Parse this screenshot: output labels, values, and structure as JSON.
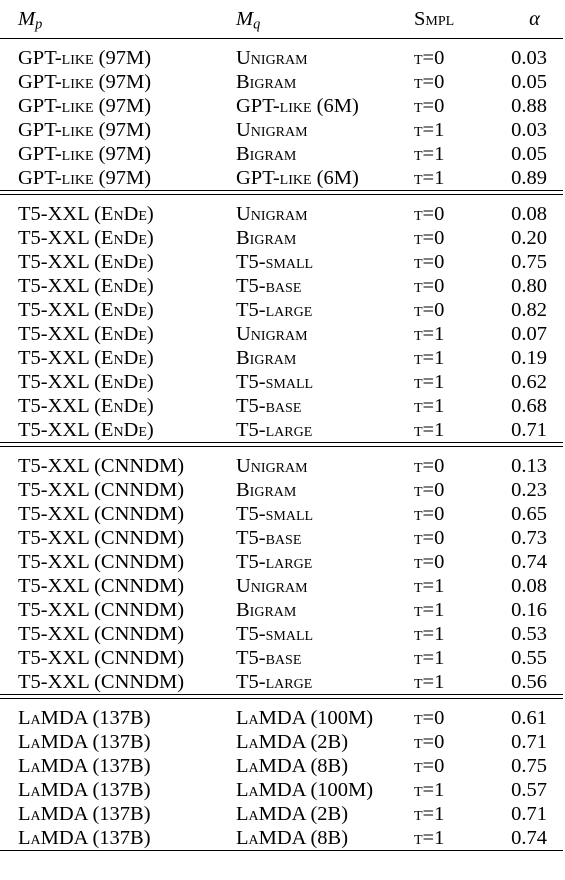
{
  "header": {
    "mp_base": "M",
    "mp_sub": "p",
    "mq_base": "M",
    "mq_sub": "q",
    "smpl": "Smpl",
    "alpha": "α"
  },
  "groups": [
    {
      "rows": [
        {
          "mp": "GPT-like (97M)",
          "mq": "Unigram",
          "smpl": "t=0",
          "alpha": "0.03"
        },
        {
          "mp": "GPT-like (97M)",
          "mq": "Bigram",
          "smpl": "t=0",
          "alpha": "0.05"
        },
        {
          "mp": "GPT-like (97M)",
          "mq": "GPT-like (6M)",
          "smpl": "t=0",
          "alpha": "0.88"
        },
        {
          "mp": "GPT-like (97M)",
          "mq": "Unigram",
          "smpl": "t=1",
          "alpha": "0.03"
        },
        {
          "mp": "GPT-like (97M)",
          "mq": "Bigram",
          "smpl": "t=1",
          "alpha": "0.05"
        },
        {
          "mp": "GPT-like (97M)",
          "mq": "GPT-like (6M)",
          "smpl": "t=1",
          "alpha": "0.89"
        }
      ]
    },
    {
      "rows": [
        {
          "mp": "T5-XXL (EnDe)",
          "mq": "Unigram",
          "smpl": "t=0",
          "alpha": "0.08"
        },
        {
          "mp": "T5-XXL (EnDe)",
          "mq": "Bigram",
          "smpl": "t=0",
          "alpha": "0.20"
        },
        {
          "mp": "T5-XXL (EnDe)",
          "mq": "T5-small",
          "smpl": "t=0",
          "alpha": "0.75"
        },
        {
          "mp": "T5-XXL (EnDe)",
          "mq": "T5-base",
          "smpl": "t=0",
          "alpha": "0.80"
        },
        {
          "mp": "T5-XXL (EnDe)",
          "mq": "T5-large",
          "smpl": "t=0",
          "alpha": "0.82"
        },
        {
          "mp": "T5-XXL (EnDe)",
          "mq": "Unigram",
          "smpl": "t=1",
          "alpha": "0.07"
        },
        {
          "mp": "T5-XXL (EnDe)",
          "mq": "Bigram",
          "smpl": "t=1",
          "alpha": "0.19"
        },
        {
          "mp": "T5-XXL (EnDe)",
          "mq": "T5-small",
          "smpl": "t=1",
          "alpha": "0.62"
        },
        {
          "mp": "T5-XXL (EnDe)",
          "mq": "T5-base",
          "smpl": "t=1",
          "alpha": "0.68"
        },
        {
          "mp": "T5-XXL (EnDe)",
          "mq": "T5-large",
          "smpl": "t=1",
          "alpha": "0.71"
        }
      ]
    },
    {
      "rows": [
        {
          "mp": "T5-XXL (CNNDM)",
          "mq": "Unigram",
          "smpl": "t=0",
          "alpha": "0.13"
        },
        {
          "mp": "T5-XXL (CNNDM)",
          "mq": "Bigram",
          "smpl": "t=0",
          "alpha": "0.23"
        },
        {
          "mp": "T5-XXL (CNNDM)",
          "mq": "T5-small",
          "smpl": "t=0",
          "alpha": "0.65"
        },
        {
          "mp": "T5-XXL (CNNDM)",
          "mq": "T5-base",
          "smpl": "t=0",
          "alpha": "0.73"
        },
        {
          "mp": "T5-XXL (CNNDM)",
          "mq": "T5-large",
          "smpl": "t=0",
          "alpha": "0.74"
        },
        {
          "mp": "T5-XXL (CNNDM)",
          "mq": "Unigram",
          "smpl": "t=1",
          "alpha": "0.08"
        },
        {
          "mp": "T5-XXL (CNNDM)",
          "mq": "Bigram",
          "smpl": "t=1",
          "alpha": "0.16"
        },
        {
          "mp": "T5-XXL (CNNDM)",
          "mq": "T5-small",
          "smpl": "t=1",
          "alpha": "0.53"
        },
        {
          "mp": "T5-XXL (CNNDM)",
          "mq": "T5-base",
          "smpl": "t=1",
          "alpha": "0.55"
        },
        {
          "mp": "T5-XXL (CNNDM)",
          "mq": "T5-large",
          "smpl": "t=1",
          "alpha": "0.56"
        }
      ]
    },
    {
      "rows": [
        {
          "mp": "LaMDA (137B)",
          "mq": "LaMDA (100M)",
          "smpl": "t=0",
          "alpha": "0.61"
        },
        {
          "mp": "LaMDA (137B)",
          "mq": "LaMDA (2B)",
          "smpl": "t=0",
          "alpha": "0.71"
        },
        {
          "mp": "LaMDA (137B)",
          "mq": "LaMDA (8B)",
          "smpl": "t=0",
          "alpha": "0.75"
        },
        {
          "mp": "LaMDA (137B)",
          "mq": "LaMDA (100M)",
          "smpl": "t=1",
          "alpha": "0.57"
        },
        {
          "mp": "LaMDA (137B)",
          "mq": "LaMDA (2B)",
          "smpl": "t=1",
          "alpha": "0.71"
        },
        {
          "mp": "LaMDA (137B)",
          "mq": "LaMDA (8B)",
          "smpl": "t=1",
          "alpha": "0.74"
        }
      ]
    }
  ]
}
